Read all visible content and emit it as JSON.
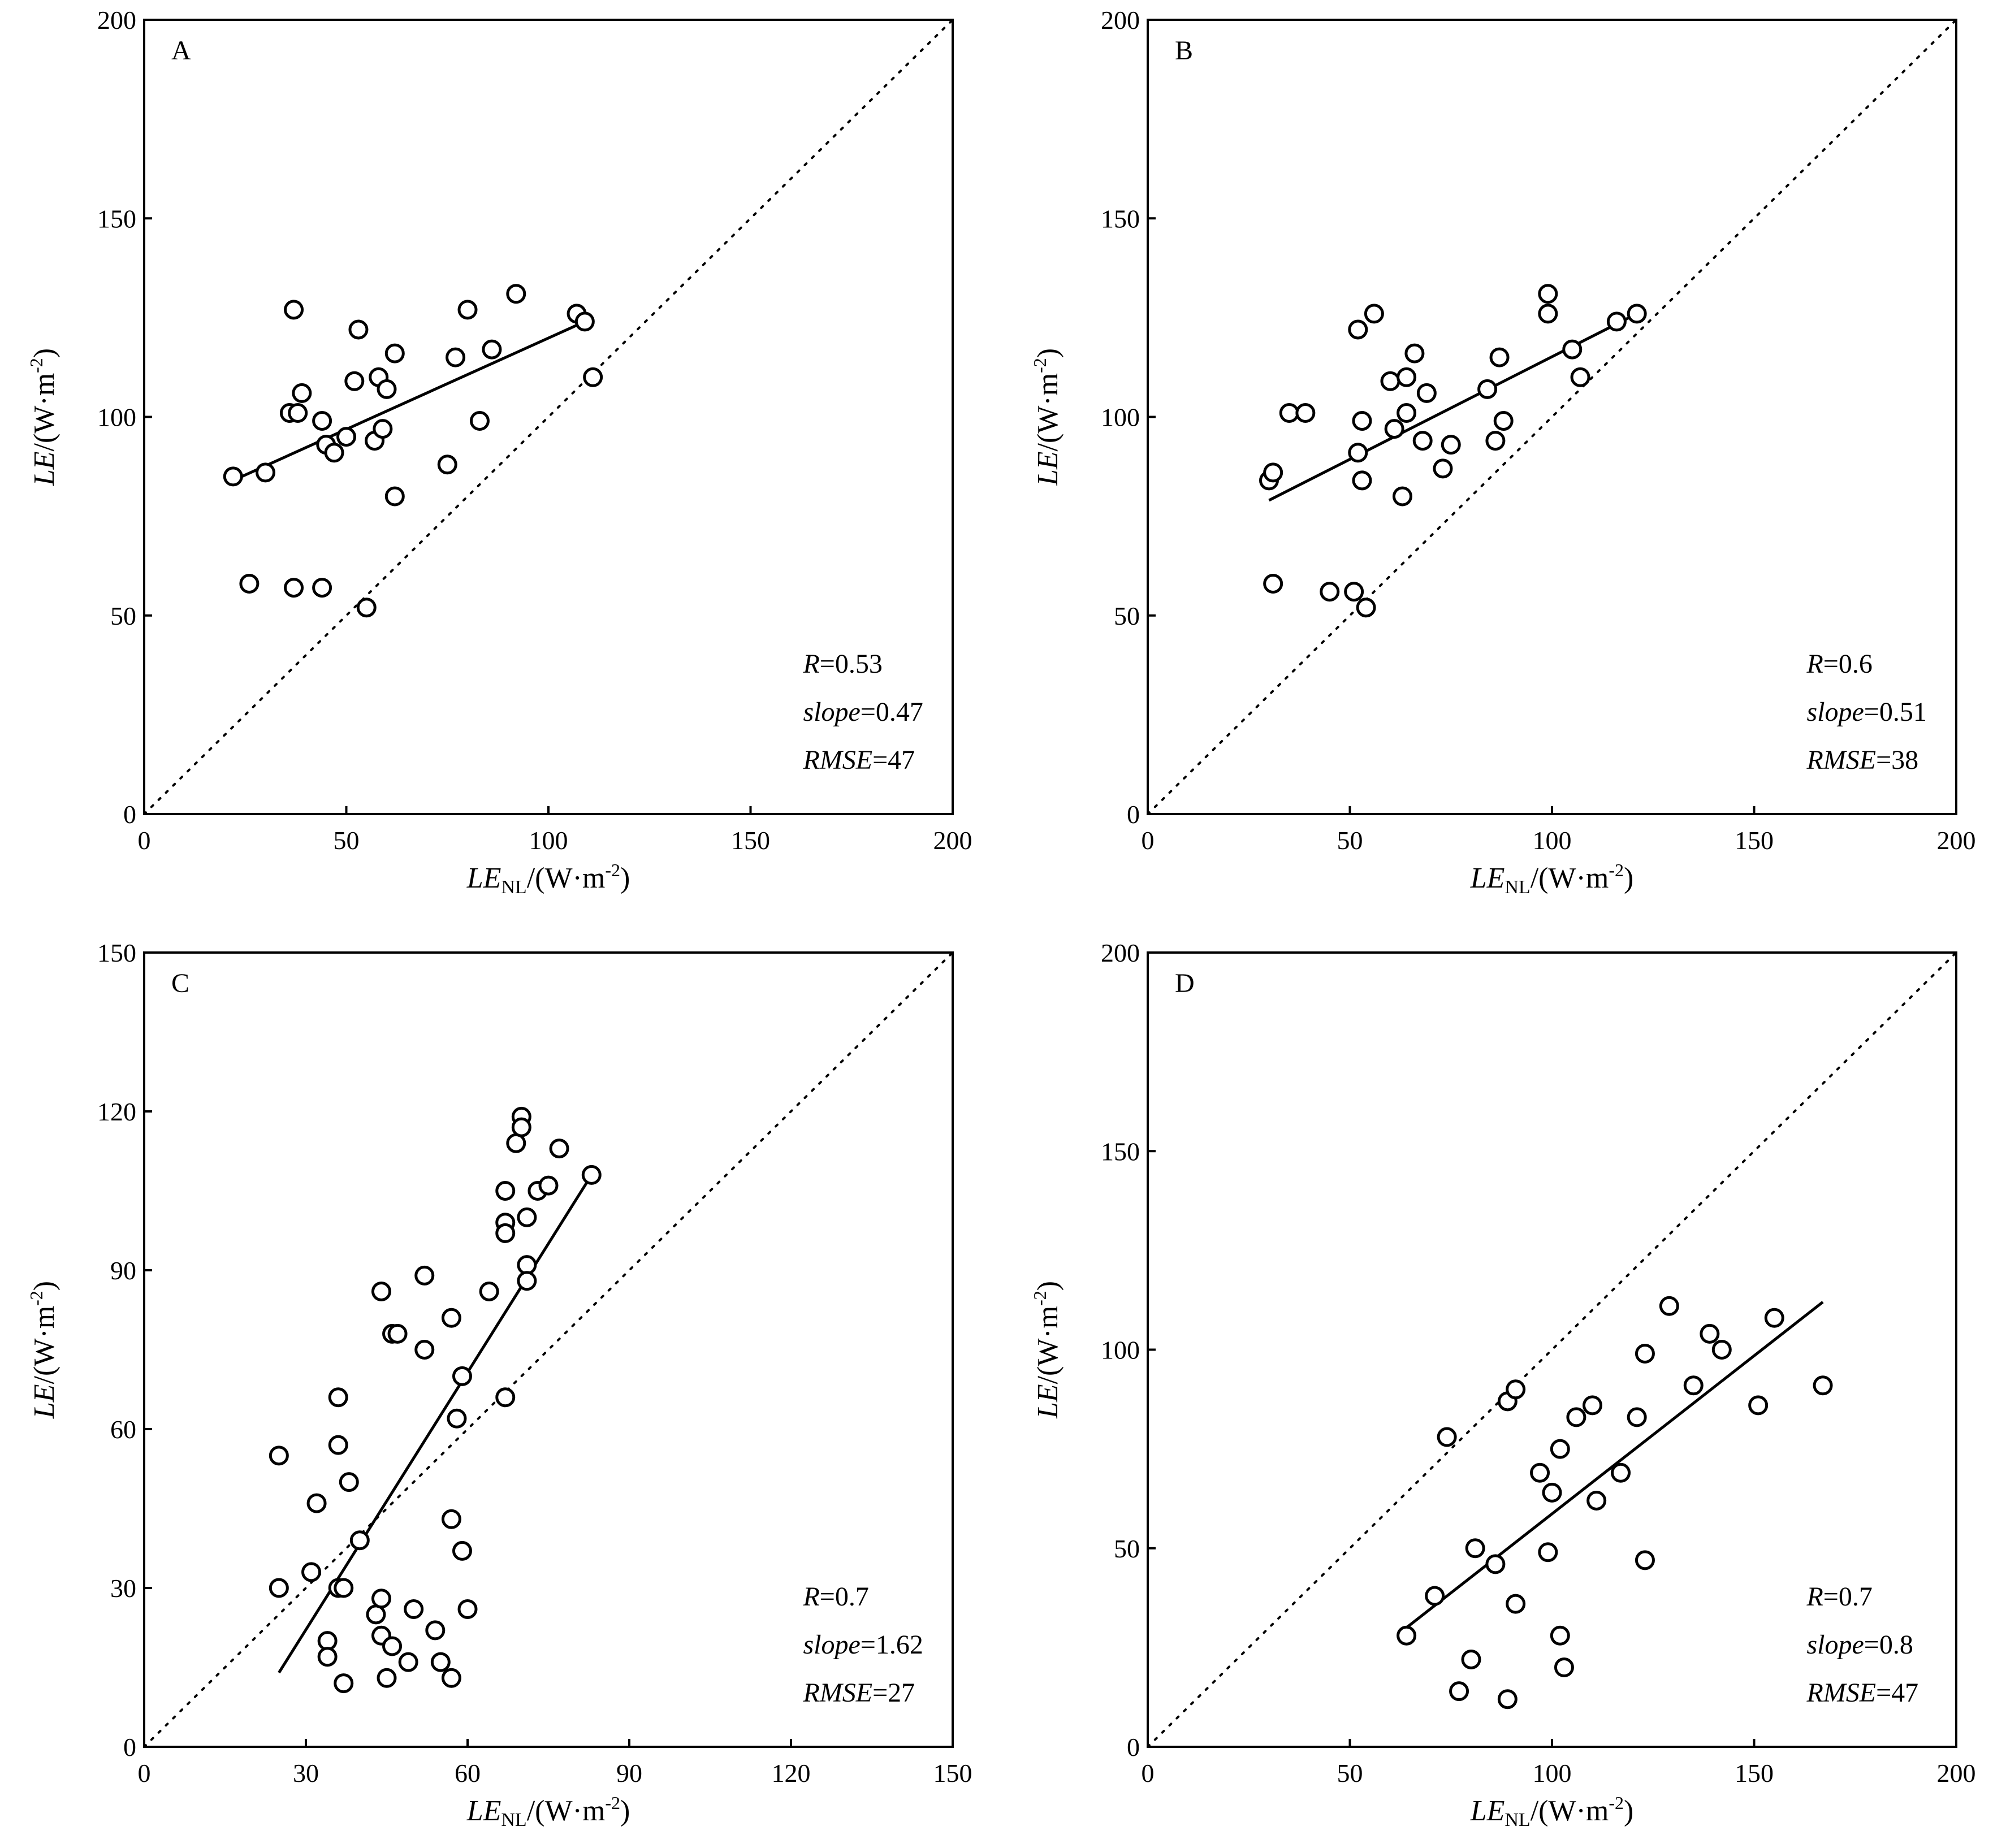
{
  "chart_data": [
    {
      "type": "scatter",
      "panel_label": "A",
      "xlabel": {
        "main": "LE",
        "sub": "NL",
        "unit": "/(W·m",
        "exp": "-2",
        "close": ")"
      },
      "ylabel": {
        "main": "LE",
        "unit": "/(W·m",
        "exp": "-2",
        "close": ")"
      },
      "xlim": [
        0,
        200
      ],
      "ylim": [
        0,
        200
      ],
      "xticks": [
        0,
        50,
        100,
        150,
        200
      ],
      "yticks": [
        0,
        50,
        100,
        150,
        200
      ],
      "one_to_one_line": true,
      "fit_line": {
        "x": [
          22,
          109
        ],
        "y": [
          84,
          124
        ]
      },
      "stats": [
        {
          "name": "R",
          "value": "0.53"
        },
        {
          "name": "slope",
          "value": "0.47"
        },
        {
          "name": "RMSE",
          "value": "47"
        }
      ],
      "points": [
        [
          22,
          85
        ],
        [
          30,
          86
        ],
        [
          26,
          58
        ],
        [
          37,
          57
        ],
        [
          44,
          57
        ],
        [
          55,
          52
        ],
        [
          37,
          127
        ],
        [
          36,
          101
        ],
        [
          38,
          101
        ],
        [
          39,
          106
        ],
        [
          44,
          99
        ],
        [
          45,
          93
        ],
        [
          47,
          91
        ],
        [
          50,
          95
        ],
        [
          52,
          109
        ],
        [
          53,
          122
        ],
        [
          57,
          94
        ],
        [
          58,
          110
        ],
        [
          59,
          97
        ],
        [
          60,
          107
        ],
        [
          62,
          116
        ],
        [
          62,
          80
        ],
        [
          75,
          88
        ],
        [
          77,
          115
        ],
        [
          80,
          127
        ],
        [
          83,
          99
        ],
        [
          86,
          117
        ],
        [
          92,
          131
        ],
        [
          107,
          126
        ],
        [
          109,
          124
        ],
        [
          111,
          110
        ]
      ]
    },
    {
      "type": "scatter",
      "panel_label": "B",
      "xlabel": {
        "main": "LE",
        "sub": "NL",
        "unit": "/(W·m",
        "exp": "-2",
        "close": ")"
      },
      "ylabel": {
        "main": "LE",
        "unit": "/(W·m",
        "exp": "-2",
        "close": ")"
      },
      "xlim": [
        0,
        200
      ],
      "ylim": [
        0,
        200
      ],
      "xticks": [
        0,
        50,
        100,
        150,
        200
      ],
      "yticks": [
        0,
        50,
        100,
        150,
        200
      ],
      "one_to_one_line": true,
      "fit_line": {
        "x": [
          30,
          121
        ],
        "y": [
          79,
          126
        ]
      },
      "stats": [
        {
          "name": "R",
          "value": "0.6"
        },
        {
          "name": "slope",
          "value": "0.51"
        },
        {
          "name": "RMSE",
          "value": "38"
        }
      ],
      "points": [
        [
          30,
          84
        ],
        [
          31,
          86
        ],
        [
          31,
          58
        ],
        [
          35,
          101
        ],
        [
          39,
          101
        ],
        [
          45,
          56
        ],
        [
          51,
          56
        ],
        [
          52,
          91
        ],
        [
          52,
          122
        ],
        [
          53,
          84
        ],
        [
          53,
          99
        ],
        [
          54,
          52
        ],
        [
          56,
          126
        ],
        [
          60,
          109
        ],
        [
          61,
          97
        ],
        [
          63,
          80
        ],
        [
          64,
          110
        ],
        [
          64,
          101
        ],
        [
          66,
          116
        ],
        [
          68,
          94
        ],
        [
          69,
          106
        ],
        [
          73,
          87
        ],
        [
          75,
          93
        ],
        [
          84,
          107
        ],
        [
          86,
          94
        ],
        [
          87,
          115
        ],
        [
          88,
          99
        ],
        [
          99,
          131
        ],
        [
          99,
          126
        ],
        [
          105,
          117
        ],
        [
          107,
          110
        ],
        [
          116,
          124
        ],
        [
          121,
          126
        ]
      ]
    },
    {
      "type": "scatter",
      "panel_label": "C",
      "xlabel": {
        "main": "LE",
        "sub": "NL",
        "unit": "/(W·m",
        "exp": "-2",
        "close": ")"
      },
      "ylabel": {
        "main": "LE",
        "unit": "/(W·m",
        "exp": "-2",
        "close": ")"
      },
      "xlim": [
        0,
        150
      ],
      "ylim": [
        0,
        150
      ],
      "xticks": [
        0,
        30,
        60,
        90,
        120,
        150
      ],
      "yticks": [
        0,
        30,
        60,
        90,
        120,
        150
      ],
      "one_to_one_line": true,
      "fit_line": {
        "x": [
          25,
          83
        ],
        "y": [
          14,
          108
        ]
      },
      "stats": [
        {
          "name": "R",
          "value": "0.7"
        },
        {
          "name": "slope",
          "value": "1.62"
        },
        {
          "name": "RMSE",
          "value": "27"
        }
      ],
      "points": [
        [
          25,
          55
        ],
        [
          25,
          30
        ],
        [
          31,
          33
        ],
        [
          32,
          46
        ],
        [
          34,
          20
        ],
        [
          34,
          17
        ],
        [
          36,
          66
        ],
        [
          36,
          57
        ],
        [
          36,
          30
        ],
        [
          37,
          30
        ],
        [
          37,
          12
        ],
        [
          38,
          50
        ],
        [
          40,
          39
        ],
        [
          43,
          25
        ],
        [
          44,
          28
        ],
        [
          44,
          21
        ],
        [
          44,
          86
        ],
        [
          45,
          13
        ],
        [
          46,
          19
        ],
        [
          46,
          78
        ],
        [
          47,
          78
        ],
        [
          49,
          16
        ],
        [
          50,
          26
        ],
        [
          52,
          75
        ],
        [
          52,
          89
        ],
        [
          54,
          22
        ],
        [
          55,
          16
        ],
        [
          57,
          13
        ],
        [
          57,
          43
        ],
        [
          57,
          81
        ],
        [
          58,
          62
        ],
        [
          59,
          37
        ],
        [
          59,
          70
        ],
        [
          60,
          26
        ],
        [
          64,
          86
        ],
        [
          67,
          99
        ],
        [
          67,
          97
        ],
        [
          67,
          105
        ],
        [
          67,
          66
        ],
        [
          69,
          114
        ],
        [
          70,
          119
        ],
        [
          70,
          117
        ],
        [
          71,
          100
        ],
        [
          71,
          91
        ],
        [
          71,
          88
        ],
        [
          73,
          105
        ],
        [
          75,
          106
        ],
        [
          77,
          113
        ],
        [
          83,
          108
        ]
      ]
    },
    {
      "type": "scatter",
      "panel_label": "D",
      "xlabel": {
        "main": "LE",
        "sub": "NL",
        "unit": "/(W·m",
        "exp": "-2",
        "close": ")"
      },
      "ylabel": {
        "main": "LE",
        "unit": "/(W·m",
        "exp": "-2",
        "close": ")"
      },
      "xlim": [
        0,
        200
      ],
      "ylim": [
        0,
        200
      ],
      "xticks": [
        0,
        50,
        100,
        150,
        200
      ],
      "yticks": [
        0,
        50,
        100,
        150,
        200
      ],
      "one_to_one_line": true,
      "fit_line": {
        "x": [
          64,
          167
        ],
        "y": [
          30,
          112
        ]
      },
      "stats": [
        {
          "name": "R",
          "value": "0.7"
        },
        {
          "name": "slope",
          "value": "0.8"
        },
        {
          "name": "RMSE",
          "value": "47"
        }
      ],
      "points": [
        [
          64,
          28
        ],
        [
          71,
          38
        ],
        [
          74,
          78
        ],
        [
          77,
          14
        ],
        [
          80,
          22
        ],
        [
          81,
          50
        ],
        [
          86,
          46
        ],
        [
          89,
          87
        ],
        [
          89,
          12
        ],
        [
          91,
          36
        ],
        [
          91,
          90
        ],
        [
          97,
          69
        ],
        [
          99,
          49
        ],
        [
          100,
          64
        ],
        [
          102,
          75
        ],
        [
          102,
          28
        ],
        [
          103,
          20
        ],
        [
          106,
          83
        ],
        [
          111,
          62
        ],
        [
          110,
          86
        ],
        [
          117,
          69
        ],
        [
          121,
          83
        ],
        [
          123,
          47
        ],
        [
          123,
          99
        ],
        [
          129,
          111
        ],
        [
          135,
          91
        ],
        [
          139,
          104
        ],
        [
          142,
          100
        ],
        [
          151,
          86
        ],
        [
          155,
          108
        ],
        [
          167,
          91
        ]
      ]
    }
  ]
}
